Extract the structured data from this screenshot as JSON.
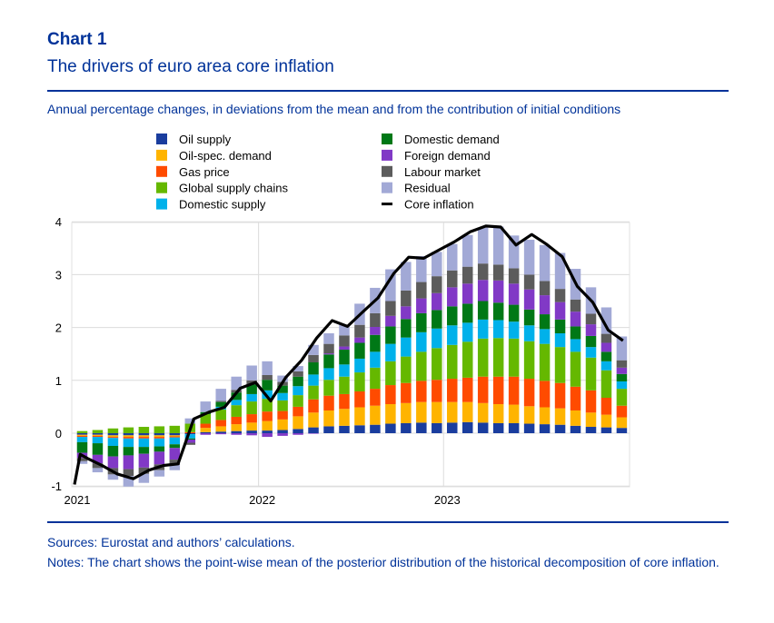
{
  "header": {
    "chart_number": "Chart 1",
    "title": "The drivers of euro area core inflation"
  },
  "subtitle": "Annual percentage changes, in deviations from the mean and from the contribution of initial conditions",
  "footer": {
    "sources": "Sources: Eurostat and authors’ calculations.",
    "notes": "Notes: The chart shows the point-wise mean of the posterior distribution of the historical decomposition of core inflation."
  },
  "colors": {
    "oil_supply": "#1a3d9e",
    "oil_demand": "#ffb400",
    "gas_price": "#ff4b00",
    "global_supply": "#65b800",
    "domestic_supply": "#00b1ea",
    "domestic_demand": "#007816",
    "foreign_demand": "#8139c6",
    "labour_market": "#5c5c5c",
    "residual": "#a2a9d6",
    "core_inflation": "#000000"
  },
  "chart_data": {
    "type": "bar",
    "stacked": true,
    "title": "",
    "xlabel": "",
    "ylabel": "",
    "ylim": [
      -1,
      4
    ],
    "yticks": [
      -1,
      0,
      1,
      2,
      3,
      4
    ],
    "xtick_labels": [
      "2021",
      "2022",
      "2023"
    ],
    "xtick_months": [
      0,
      12,
      24
    ],
    "categories": [
      "Jan 2021",
      "Feb 2021",
      "Mar 2021",
      "Apr 2021",
      "May 2021",
      "Jun 2021",
      "Jul 2021",
      "Aug 2021",
      "Sep 2021",
      "Oct 2021",
      "Nov 2021",
      "Dec 2021",
      "Jan 2022",
      "Feb 2022",
      "Mar 2022",
      "Apr 2022",
      "May 2022",
      "Jun 2022",
      "Jul 2022",
      "Aug 2022",
      "Sep 2022",
      "Oct 2022",
      "Nov 2022",
      "Dec 2022",
      "Jan 2023",
      "Feb 2023",
      "Mar 2023",
      "Apr 2023",
      "May 2023",
      "Jun 2023",
      "Jul 2023",
      "Aug 2023",
      "Sep 2023",
      "Oct 2023",
      "Nov 2023",
      "Dec 2023"
    ],
    "series": [
      {
        "name": "Oil supply",
        "key": "oil_supply",
        "values": [
          -0.03,
          -0.03,
          -0.04,
          -0.04,
          -0.04,
          -0.04,
          -0.04,
          -0.02,
          0.02,
          0.03,
          0.04,
          0.05,
          0.05,
          0.06,
          0.08,
          0.11,
          0.13,
          0.14,
          0.15,
          0.16,
          0.18,
          0.19,
          0.2,
          0.19,
          0.2,
          0.21,
          0.2,
          0.19,
          0.19,
          0.18,
          0.17,
          0.16,
          0.14,
          0.12,
          0.11,
          0.1
        ]
      },
      {
        "name": "Oil-spec. demand",
        "key": "oil_demand",
        "values": [
          -0.02,
          -0.02,
          -0.03,
          -0.03,
          -0.03,
          -0.03,
          -0.02,
          0.0,
          0.08,
          0.1,
          0.13,
          0.15,
          0.18,
          0.2,
          0.24,
          0.28,
          0.3,
          0.32,
          0.34,
          0.36,
          0.37,
          0.38,
          0.39,
          0.4,
          0.39,
          0.38,
          0.37,
          0.36,
          0.35,
          0.33,
          0.32,
          0.31,
          0.29,
          0.27,
          0.24,
          0.2
        ]
      },
      {
        "name": "Gas price",
        "key": "gas_price",
        "values": [
          -0.02,
          -0.02,
          -0.02,
          -0.03,
          -0.03,
          -0.03,
          -0.02,
          0.02,
          0.08,
          0.12,
          0.14,
          0.16,
          0.18,
          0.16,
          0.18,
          0.25,
          0.28,
          0.28,
          0.3,
          0.32,
          0.36,
          0.38,
          0.4,
          0.42,
          0.44,
          0.46,
          0.5,
          0.52,
          0.53,
          0.52,
          0.5,
          0.48,
          0.45,
          0.42,
          0.32,
          0.22
        ]
      },
      {
        "name": "Global supply chains",
        "key": "global_supply",
        "values": [
          0.04,
          0.06,
          0.09,
          0.11,
          0.12,
          0.13,
          0.14,
          0.16,
          0.18,
          0.2,
          0.22,
          0.24,
          0.24,
          0.2,
          0.22,
          0.26,
          0.3,
          0.33,
          0.36,
          0.4,
          0.45,
          0.5,
          0.55,
          0.6,
          0.64,
          0.68,
          0.72,
          0.73,
          0.72,
          0.71,
          0.7,
          0.68,
          0.66,
          0.62,
          0.52,
          0.32
        ]
      },
      {
        "name": "Domestic supply",
        "key": "domestic_supply",
        "values": [
          -0.1,
          -0.12,
          -0.15,
          -0.16,
          -0.16,
          -0.15,
          -0.13,
          -0.08,
          0.0,
          0.05,
          0.1,
          0.14,
          0.16,
          0.14,
          0.17,
          0.21,
          0.22,
          0.23,
          0.26,
          0.3,
          0.33,
          0.36,
          0.37,
          0.37,
          0.37,
          0.36,
          0.36,
          0.34,
          0.32,
          0.3,
          0.28,
          0.26,
          0.24,
          0.2,
          0.17,
          0.14
        ]
      },
      {
        "name": "Domestic demand",
        "key": "domestic_demand",
        "values": [
          -0.2,
          -0.22,
          -0.2,
          -0.16,
          -0.13,
          -0.1,
          -0.07,
          -0.02,
          0.04,
          0.09,
          0.14,
          0.18,
          0.2,
          0.14,
          0.18,
          0.23,
          0.26,
          0.28,
          0.3,
          0.32,
          0.33,
          0.35,
          0.36,
          0.35,
          0.36,
          0.36,
          0.35,
          0.33,
          0.32,
          0.3,
          0.28,
          0.26,
          0.24,
          0.21,
          0.18,
          0.14
        ]
      },
      {
        "name": "Foreign demand",
        "key": "foreign_demand",
        "values": [
          -0.1,
          -0.16,
          -0.22,
          -0.26,
          -0.26,
          -0.24,
          -0.22,
          -0.06,
          -0.03,
          -0.02,
          -0.03,
          -0.04,
          -0.07,
          -0.05,
          -0.03,
          -0.01,
          0.02,
          0.06,
          0.1,
          0.15,
          0.2,
          0.24,
          0.28,
          0.32,
          0.36,
          0.38,
          0.4,
          0.42,
          0.4,
          0.38,
          0.36,
          0.33,
          0.28,
          0.22,
          0.17,
          0.12
        ]
      },
      {
        "name": "Labour market",
        "key": "labour_market",
        "values": [
          -0.06,
          -0.09,
          -0.12,
          -0.13,
          -0.12,
          -0.11,
          -0.1,
          -0.04,
          0.0,
          0.02,
          0.05,
          0.08,
          0.09,
          0.07,
          0.1,
          0.14,
          0.18,
          0.21,
          0.24,
          0.26,
          0.28,
          0.3,
          0.31,
          0.32,
          0.32,
          0.32,
          0.31,
          0.3,
          0.29,
          0.28,
          0.27,
          0.25,
          0.23,
          0.2,
          0.17,
          0.14
        ]
      },
      {
        "name": "Residual",
        "key": "residual",
        "values": [
          -0.05,
          -0.08,
          -0.1,
          -0.2,
          -0.17,
          -0.12,
          -0.1,
          0.1,
          0.2,
          0.23,
          0.25,
          0.28,
          0.26,
          0.12,
          0.1,
          0.19,
          0.2,
          0.2,
          0.4,
          0.48,
          0.6,
          0.54,
          0.49,
          0.46,
          0.5,
          0.6,
          0.68,
          0.72,
          0.62,
          0.66,
          0.68,
          0.68,
          0.58,
          0.5,
          0.5,
          0.45
        ]
      }
    ],
    "line": {
      "name": "Core inflation",
      "x": [
        0.0,
        0.37,
        0.86,
        1.85,
        2.76,
        3.82,
        4.83,
        5.78,
        6.72,
        7.74,
        8.74,
        9.73,
        10.75,
        11.75,
        12.73,
        13.72,
        14.73,
        15.71,
        16.71,
        17.71,
        18.72,
        19.69,
        20.71,
        21.68,
        22.65,
        23.67,
        24.64,
        25.66,
        26.68,
        27.65,
        28.64,
        29.66,
        30.64,
        31.64,
        32.61,
        33.61,
        34.62,
        35.58
      ],
      "values": [
        -0.97,
        -0.4,
        -0.48,
        -0.62,
        -0.77,
        -0.86,
        -0.7,
        -0.61,
        -0.58,
        0.27,
        0.4,
        0.49,
        0.85,
        0.96,
        0.61,
        1.06,
        1.38,
        1.8,
        2.13,
        2.02,
        2.3,
        2.56,
        3.02,
        3.33,
        3.31,
        3.47,
        3.62,
        3.81,
        3.92,
        3.9,
        3.56,
        3.76,
        3.57,
        3.34,
        2.78,
        2.48,
        1.95,
        1.75
      ]
    },
    "legend": {
      "position": "top",
      "columns": [
        [
          "Oil supply",
          "Oil-spec. demand",
          "Gas price",
          "Global supply chains",
          "Domestic supply"
        ],
        [
          "Domestic demand",
          "Foreign demand",
          "Labour market",
          "Residual",
          "Core inflation"
        ]
      ],
      "keys": [
        [
          "oil_supply",
          "oil_demand",
          "gas_price",
          "global_supply",
          "domestic_supply"
        ],
        [
          "domestic_demand",
          "foreign_demand",
          "labour_market",
          "residual",
          "core_inflation"
        ]
      ]
    },
    "grid": true
  }
}
